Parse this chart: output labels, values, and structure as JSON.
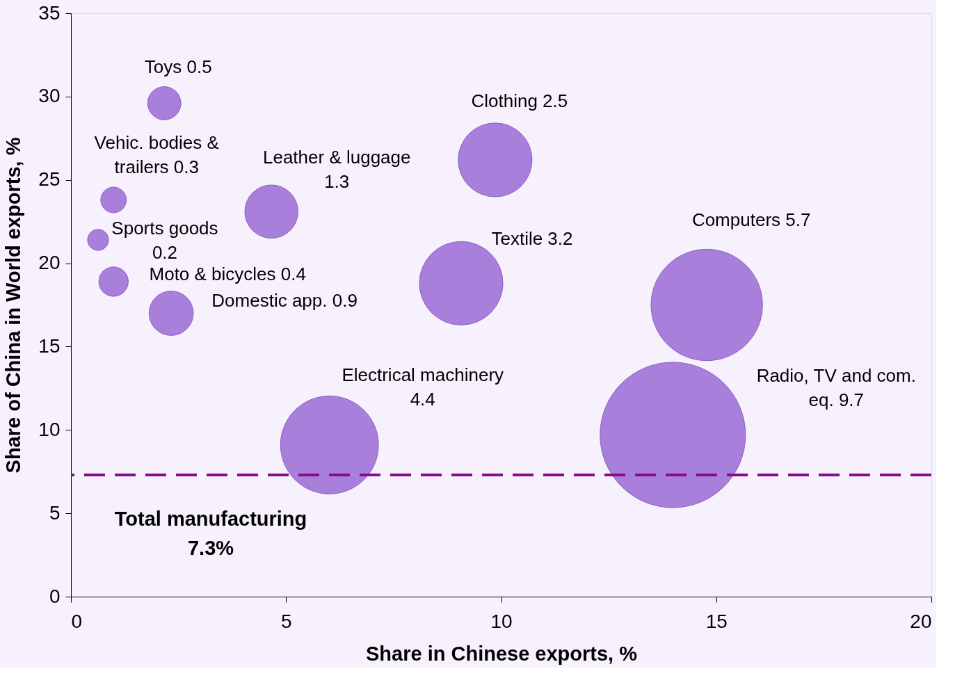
{
  "chart_data": {
    "type": "bubble",
    "xlabel": "Share in Chinese exports, %",
    "ylabel": "Share of China in World exports, %",
    "series": [
      {
        "color": "#a97fdc",
        "x": [
          2.17,
          0.99,
          0.63,
          0.99,
          2.33,
          4.66,
          9.86,
          9.07,
          14.78,
          6.01,
          13.99
        ],
        "values": [
          29.6,
          23.8,
          21.4,
          18.9,
          17.0,
          23.1,
          26.2,
          18.8,
          17.5,
          9.1,
          9.7
        ],
        "sizes": [
          0.052,
          0.031,
          0.021,
          0.041,
          0.093,
          0.134,
          0.258,
          0.33,
          0.588,
          0.454,
          1
        ]
      }
    ],
    "annotations": [
      "Toys 0.5",
      "Vehic. bodies &\ntrailers 0.3",
      "Sports goods\n0.2",
      "Moto & bicycles 0.4",
      "Domestic app. 0.9",
      "Leather & luggage\n1.3",
      "Clothing 2.5",
      "Textile 3.2",
      "Computers 5.7",
      "Electrical machinery\n4.4",
      "Radio, TV and com.\neq. 9.7"
    ],
    "ref_lines": [
      {
        "axis": "y",
        "value": 7.3,
        "label": "Total manufacturing\n7.3%",
        "color": "#8b0a8b",
        "line_style": "dashed"
      }
    ],
    "xlim": [
      0,
      20
    ],
    "xticks": [
      0,
      5,
      10,
      15,
      20
    ],
    "ylim": [
      0,
      35
    ],
    "yticks": [
      0,
      5,
      10,
      15,
      20,
      25,
      30,
      35
    ],
    "grid": false,
    "legend": false
  }
}
